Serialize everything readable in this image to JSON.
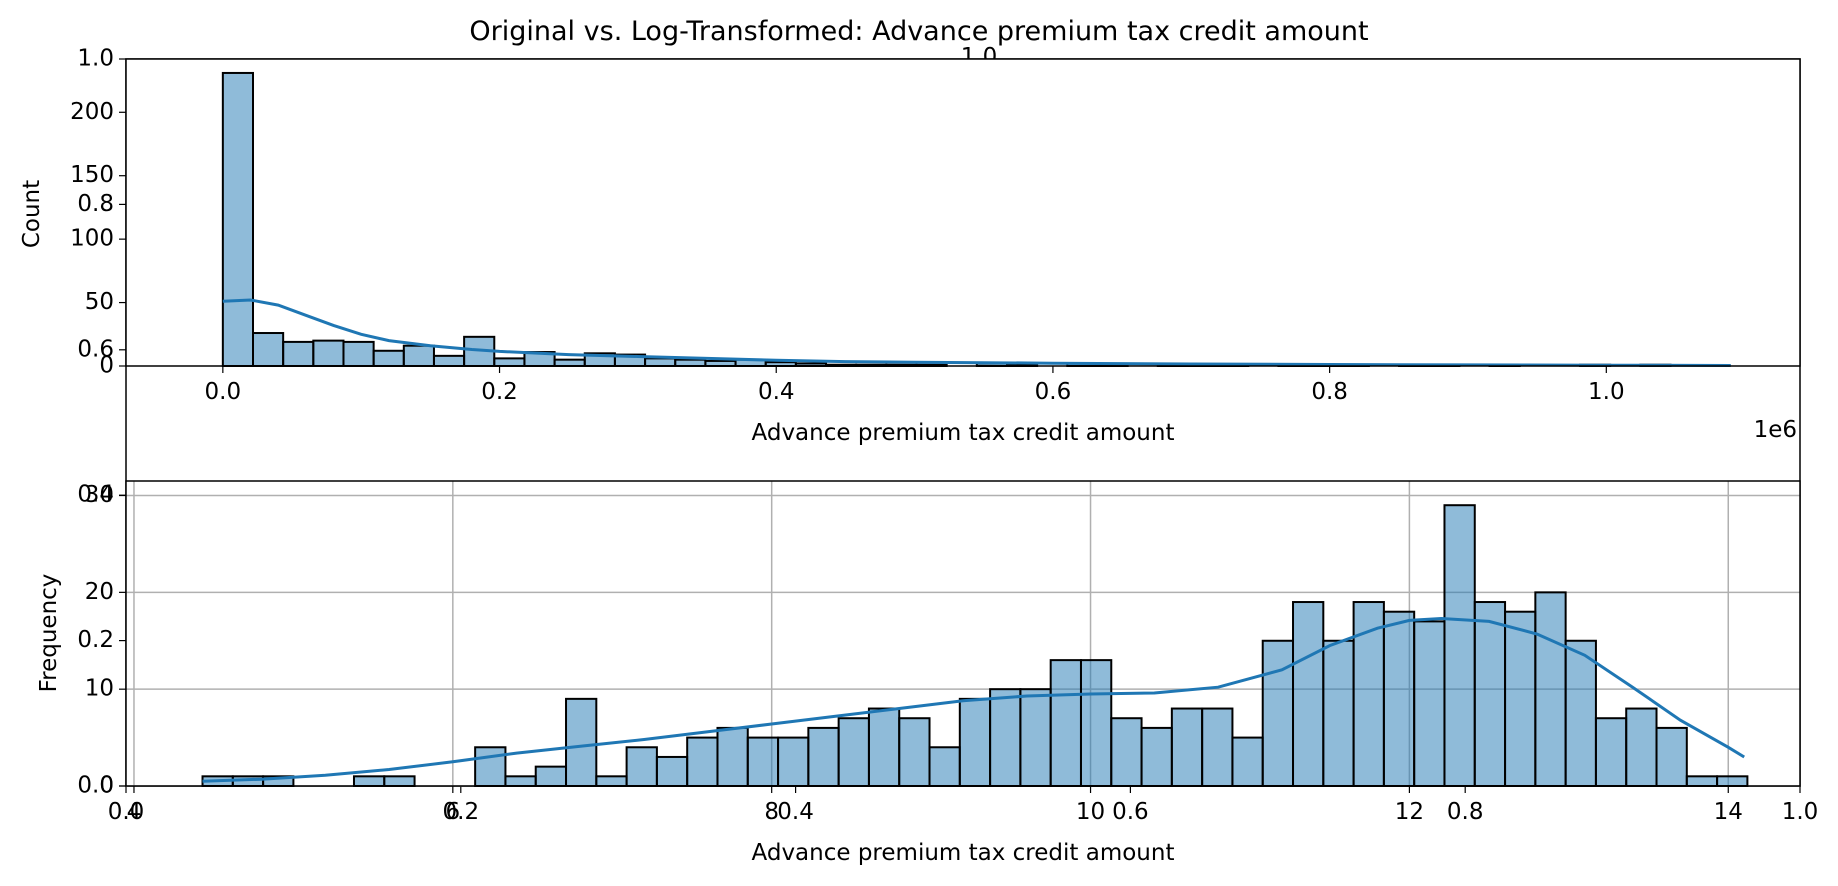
{
  "suptitle": "Original vs. Log-Transformed: Advance premium tax credit amount",
  "background_axes": {
    "xticks": [
      "0.0",
      "0.2",
      "0.4",
      "0.6",
      "0.8",
      "1.0"
    ],
    "yticks": [
      "0.0",
      "0.2",
      "0.4",
      "0.6",
      "0.8",
      "1.0"
    ],
    "title_fragment": "1.0"
  },
  "chart_data": [
    {
      "type": "bar",
      "subtype": "histogram with kde",
      "title": "",
      "xlabel": "Advance premium tax credit amount",
      "ylabel": "Count",
      "x_offset_label": "1e6",
      "xlim": [
        -70000,
        1140000
      ],
      "ylim": [
        0,
        242
      ],
      "xticks": [
        0,
        200000,
        400000,
        600000,
        800000,
        1000000
      ],
      "xtick_labels": [
        "0.0",
        "0.2",
        "0.4",
        "0.6",
        "0.8",
        "1.0"
      ],
      "yticks": [
        0,
        50,
        100,
        150,
        200
      ],
      "ytick_labels": [
        "0",
        "50",
        "100",
        "150",
        "200"
      ],
      "grid": false,
      "bar_color": "#1f77b4",
      "bin_start": 0,
      "bin_width": 21800,
      "values": [
        231,
        26,
        19,
        20,
        19,
        12,
        16,
        8,
        23,
        6,
        11,
        5,
        10,
        9,
        6,
        5,
        4,
        5,
        3,
        2,
        1,
        1,
        1,
        1,
        0,
        2,
        1,
        0,
        2,
        1,
        0,
        1,
        1,
        1,
        0,
        1,
        1,
        1,
        0,
        1,
        1,
        0,
        1,
        0,
        0,
        1,
        0,
        1,
        0,
        0
      ],
      "kde": {
        "x": [
          0,
          20000,
          40000,
          60000,
          80000,
          100000,
          120000,
          150000,
          180000,
          200000,
          250000,
          300000,
          350000,
          400000,
          450000,
          500000,
          600000,
          700000,
          800000,
          900000,
          1000000,
          1090000
        ],
        "y": [
          51,
          52,
          48,
          40,
          32,
          25,
          20,
          16,
          13,
          11.5,
          9,
          7.5,
          6,
          4.5,
          3.5,
          3,
          2.2,
          1.6,
          1.2,
          0.9,
          0.6,
          0.4
        ]
      }
    },
    {
      "type": "bar",
      "subtype": "histogram with kde",
      "title": "",
      "xlabel": "Advance premium tax credit amount",
      "ylabel": "Frequency",
      "xlim": [
        3.95,
        14.45
      ],
      "ylim": [
        0,
        31.5
      ],
      "xticks": [
        4,
        6,
        8,
        10,
        12,
        14
      ],
      "xtick_labels": [
        "4",
        "6",
        "8",
        "10",
        "12",
        "14"
      ],
      "yticks": [
        0,
        10,
        20,
        30
      ],
      "ytick_labels": [
        "0",
        "10",
        "20",
        "30"
      ],
      "grid": true,
      "bar_color": "#1f77b4",
      "bin_start": 4.43,
      "bin_width": 0.19,
      "values": [
        1,
        1,
        1,
        0,
        0,
        1,
        1,
        0,
        0,
        4,
        1,
        2,
        9,
        1,
        4,
        3,
        5,
        6,
        5,
        5,
        6,
        7,
        8,
        7,
        4,
        9,
        10,
        10,
        13,
        13,
        7,
        6,
        8,
        8,
        5,
        15,
        19,
        15,
        19,
        18,
        17,
        29,
        19,
        18,
        20,
        15,
        7,
        8,
        6,
        1,
        1
      ],
      "kde": {
        "x": [
          4.43,
          4.8,
          5.2,
          5.6,
          6.0,
          6.4,
          6.8,
          7.2,
          7.6,
          8.0,
          8.4,
          8.8,
          9.2,
          9.6,
          10.0,
          10.4,
          10.8,
          11.2,
          11.5,
          11.8,
          12.0,
          12.2,
          12.5,
          12.8,
          13.1,
          13.4,
          13.7,
          14.0,
          14.1
        ],
        "y": [
          0.5,
          0.7,
          1.1,
          1.7,
          2.5,
          3.4,
          4.1,
          4.8,
          5.6,
          6.4,
          7.2,
          8.0,
          8.8,
          9.3,
          9.5,
          9.6,
          10.2,
          12.0,
          14.5,
          16.3,
          17.1,
          17.3,
          17.0,
          15.7,
          13.5,
          10.2,
          6.8,
          4.0,
          3.0
        ]
      }
    }
  ]
}
